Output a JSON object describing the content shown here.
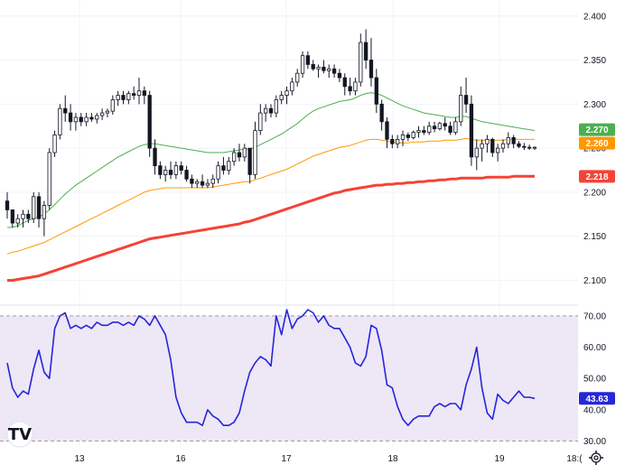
{
  "chart_data": [
    {
      "type": "candlestick",
      "title": "",
      "ylim": [
        2.08,
        2.41
      ],
      "y_ticks": [
        "2.400",
        "2.350",
        "2.300",
        "2.250",
        "2.200",
        "2.150",
        "2.100"
      ],
      "y_tick_values": [
        2.4,
        2.35,
        2.3,
        2.25,
        2.2,
        2.15,
        2.1
      ],
      "x_ticks": [
        "13",
        "16",
        "17",
        "18",
        "19",
        "18:("
      ],
      "candles": [
        [
          2.19,
          2.2,
          2.17,
          2.18
        ],
        [
          2.18,
          2.18,
          2.16,
          2.165
        ],
        [
          2.165,
          2.175,
          2.16,
          2.17
        ],
        [
          2.17,
          2.18,
          2.16,
          2.175
        ],
        [
          2.175,
          2.18,
          2.165,
          2.17
        ],
        [
          2.17,
          2.2,
          2.165,
          2.195
        ],
        [
          2.195,
          2.2,
          2.16,
          2.17
        ],
        [
          2.17,
          2.19,
          2.15,
          2.185
        ],
        [
          2.185,
          2.25,
          2.18,
          2.245
        ],
        [
          2.245,
          2.27,
          2.24,
          2.265
        ],
        [
          2.265,
          2.3,
          2.26,
          2.295
        ],
        [
          2.295,
          2.31,
          2.28,
          2.29
        ],
        [
          2.29,
          2.3,
          2.27,
          2.28
        ],
        [
          2.28,
          2.29,
          2.27,
          2.285
        ],
        [
          2.285,
          2.29,
          2.275,
          2.28
        ],
        [
          2.28,
          2.29,
          2.275,
          2.285
        ],
        [
          2.285,
          2.29,
          2.28,
          2.283
        ],
        [
          2.283,
          2.29,
          2.278,
          2.287
        ],
        [
          2.287,
          2.295,
          2.282,
          2.29
        ],
        [
          2.29,
          2.295,
          2.285,
          2.292
        ],
        [
          2.292,
          2.31,
          2.288,
          2.305
        ],
        [
          2.305,
          2.315,
          2.298,
          2.31
        ],
        [
          2.31,
          2.315,
          2.3,
          2.305
        ],
        [
          2.305,
          2.315,
          2.3,
          2.312
        ],
        [
          2.312,
          2.32,
          2.305,
          2.31
        ],
        [
          2.31,
          2.33,
          2.3,
          2.315
        ],
        [
          2.315,
          2.32,
          2.3,
          2.31
        ],
        [
          2.31,
          2.315,
          2.24,
          2.25
        ],
        [
          2.25,
          2.26,
          2.22,
          2.23
        ],
        [
          2.23,
          2.235,
          2.215,
          2.22
        ],
        [
          2.22,
          2.23,
          2.212,
          2.225
        ],
        [
          2.225,
          2.235,
          2.215,
          2.22
        ],
        [
          2.22,
          2.235,
          2.215,
          2.23
        ],
        [
          2.23,
          2.235,
          2.22,
          2.225
        ],
        [
          2.225,
          2.23,
          2.212,
          2.215
        ],
        [
          2.215,
          2.22,
          2.205,
          2.21
        ],
        [
          2.21,
          2.215,
          2.205,
          2.212
        ],
        [
          2.212,
          2.22,
          2.205,
          2.208
        ],
        [
          2.208,
          2.215,
          2.205,
          2.21
        ],
        [
          2.21,
          2.22,
          2.205,
          2.215
        ],
        [
          2.215,
          2.235,
          2.21,
          2.23
        ],
        [
          2.23,
          2.24,
          2.22,
          2.225
        ],
        [
          2.225,
          2.24,
          2.22,
          2.235
        ],
        [
          2.235,
          2.25,
          2.23,
          2.245
        ],
        [
          2.245,
          2.255,
          2.235,
          2.24
        ],
        [
          2.24,
          2.255,
          2.235,
          2.25
        ],
        [
          2.25,
          2.25,
          2.21,
          2.22
        ],
        [
          2.22,
          2.28,
          2.215,
          2.27
        ],
        [
          2.27,
          2.3,
          2.265,
          2.29
        ],
        [
          2.29,
          2.3,
          2.28,
          2.295
        ],
        [
          2.295,
          2.3,
          2.285,
          2.29
        ],
        [
          2.29,
          2.31,
          2.285,
          2.305
        ],
        [
          2.305,
          2.315,
          2.3,
          2.31
        ],
        [
          2.31,
          2.32,
          2.3,
          2.315
        ],
        [
          2.315,
          2.33,
          2.31,
          2.325
        ],
        [
          2.325,
          2.34,
          2.32,
          2.335
        ],
        [
          2.335,
          2.36,
          2.33,
          2.355
        ],
        [
          2.355,
          2.36,
          2.34,
          2.345
        ],
        [
          2.345,
          2.35,
          2.338,
          2.34
        ],
        [
          2.34,
          2.345,
          2.33,
          2.342
        ],
        [
          2.342,
          2.35,
          2.335,
          2.338
        ],
        [
          2.338,
          2.345,
          2.33,
          2.34
        ],
        [
          2.34,
          2.345,
          2.33,
          2.335
        ],
        [
          2.335,
          2.34,
          2.325,
          2.33
        ],
        [
          2.33,
          2.335,
          2.31,
          2.32
        ],
        [
          2.32,
          2.33,
          2.31,
          2.315
        ],
        [
          2.315,
          2.33,
          2.31,
          2.325
        ],
        [
          2.325,
          2.38,
          2.32,
          2.37
        ],
        [
          2.37,
          2.385,
          2.34,
          2.35
        ],
        [
          2.35,
          2.375,
          2.32,
          2.33
        ],
        [
          2.33,
          2.34,
          2.29,
          2.3
        ],
        [
          2.3,
          2.305,
          2.27,
          2.28
        ],
        [
          2.28,
          2.285,
          2.25,
          2.26
        ],
        [
          2.26,
          2.265,
          2.25,
          2.255
        ],
        [
          2.255,
          2.265,
          2.25,
          2.26
        ],
        [
          2.26,
          2.27,
          2.252,
          2.265
        ],
        [
          2.265,
          2.268,
          2.258,
          2.262
        ],
        [
          2.262,
          2.27,
          2.26,
          2.268
        ],
        [
          2.268,
          2.275,
          2.262,
          2.27
        ],
        [
          2.27,
          2.275,
          2.265,
          2.268
        ],
        [
          2.268,
          2.28,
          2.265,
          2.275
        ],
        [
          2.275,
          2.28,
          2.268,
          2.272
        ],
        [
          2.272,
          2.28,
          2.27,
          2.278
        ],
        [
          2.278,
          2.285,
          2.27,
          2.275
        ],
        [
          2.275,
          2.28,
          2.265,
          2.268
        ],
        [
          2.268,
          2.285,
          2.265,
          2.28
        ],
        [
          2.28,
          2.32,
          2.275,
          2.31
        ],
        [
          2.31,
          2.33,
          2.29,
          2.3
        ],
        [
          2.3,
          2.31,
          2.23,
          2.24
        ],
        [
          2.24,
          2.26,
          2.225,
          2.25
        ],
        [
          2.25,
          2.26,
          2.235,
          2.255
        ],
        [
          2.255,
          2.265,
          2.245,
          2.26
        ],
        [
          2.26,
          2.262,
          2.24,
          2.245
        ],
        [
          2.245,
          2.255,
          2.235,
          2.25
        ],
        [
          2.25,
          2.26,
          2.245,
          2.255
        ],
        [
          2.255,
          2.268,
          2.25,
          2.262
        ],
        [
          2.262,
          2.265,
          2.25,
          2.255
        ],
        [
          2.255,
          2.258,
          2.25,
          2.252
        ],
        [
          2.252,
          2.256,
          2.248,
          2.251
        ],
        [
          2.251,
          2.254,
          2.248,
          2.25
        ],
        [
          2.25,
          2.252,
          2.248,
          2.251
        ]
      ],
      "series": [
        {
          "name": "",
          "color": "#4caf50",
          "current_value": "2.270",
          "values": [
            2.16,
            2.16,
            2.162,
            2.165,
            2.168,
            2.17,
            2.172,
            2.175,
            2.18,
            2.186,
            2.192,
            2.198,
            2.203,
            2.208,
            2.212,
            2.216,
            2.22,
            2.224,
            2.228,
            2.232,
            2.236,
            2.24,
            2.243,
            2.246,
            2.249,
            2.252,
            2.254,
            2.255,
            2.255,
            2.254,
            2.253,
            2.252,
            2.251,
            2.25,
            2.249,
            2.248,
            2.247,
            2.246,
            2.245,
            2.245,
            2.245,
            2.245,
            2.246,
            2.247,
            2.248,
            2.249,
            2.249,
            2.251,
            2.254,
            2.257,
            2.26,
            2.263,
            2.266,
            2.27,
            2.274,
            2.278,
            2.283,
            2.288,
            2.292,
            2.295,
            2.297,
            2.299,
            2.301,
            2.303,
            2.304,
            2.305,
            2.307,
            2.31,
            2.312,
            2.313,
            2.312,
            2.31,
            2.307,
            2.304,
            2.301,
            2.298,
            2.296,
            2.294,
            2.292,
            2.29,
            2.289,
            2.288,
            2.287,
            2.286,
            2.285,
            2.285,
            2.286,
            2.286,
            2.284,
            2.282,
            2.28,
            2.279,
            2.278,
            2.277,
            2.276,
            2.275,
            2.274,
            2.273,
            2.272,
            2.271,
            2.27
          ]
        },
        {
          "name": "",
          "color": "#ff9800",
          "current_value": "2.260",
          "values": [
            2.13,
            2.132,
            2.133,
            2.135,
            2.137,
            2.139,
            2.141,
            2.143,
            2.146,
            2.149,
            2.152,
            2.155,
            2.158,
            2.161,
            2.164,
            2.167,
            2.17,
            2.173,
            2.176,
            2.179,
            2.182,
            2.185,
            2.188,
            2.191,
            2.194,
            2.197,
            2.2,
            2.202,
            2.203,
            2.204,
            2.205,
            2.205,
            2.205,
            2.205,
            2.205,
            2.205,
            2.205,
            2.205,
            2.205,
            2.206,
            2.207,
            2.208,
            2.209,
            2.21,
            2.211,
            2.212,
            2.212,
            2.214,
            2.216,
            2.218,
            2.22,
            2.222,
            2.224,
            2.226,
            2.229,
            2.232,
            2.235,
            2.238,
            2.241,
            2.243,
            2.245,
            2.247,
            2.249,
            2.251,
            2.252,
            2.253,
            2.255,
            2.257,
            2.259,
            2.26,
            2.26,
            2.259,
            2.258,
            2.257,
            2.256,
            2.256,
            2.256,
            2.257,
            2.257,
            2.257,
            2.258,
            2.258,
            2.258,
            2.259,
            2.259,
            2.259,
            2.26,
            2.261,
            2.26,
            2.259,
            2.259,
            2.259,
            2.259,
            2.259,
            2.259,
            2.26,
            2.26,
            2.26,
            2.26,
            2.26,
            2.26
          ]
        },
        {
          "name": "",
          "color": "#f44336",
          "current_value": "2.218",
          "values": [
            2.1,
            2.1,
            2.101,
            2.102,
            2.103,
            2.104,
            2.105,
            2.107,
            2.109,
            2.111,
            2.113,
            2.115,
            2.117,
            2.119,
            2.121,
            2.123,
            2.125,
            2.127,
            2.129,
            2.131,
            2.133,
            2.135,
            2.137,
            2.139,
            2.141,
            2.143,
            2.145,
            2.147,
            2.148,
            2.149,
            2.15,
            2.151,
            2.152,
            2.153,
            2.154,
            2.155,
            2.156,
            2.157,
            2.158,
            2.159,
            2.16,
            2.161,
            2.162,
            2.163,
            2.164,
            2.166,
            2.167,
            2.169,
            2.171,
            2.173,
            2.175,
            2.177,
            2.179,
            2.181,
            2.183,
            2.185,
            2.187,
            2.189,
            2.191,
            2.193,
            2.195,
            2.197,
            2.199,
            2.2,
            2.202,
            2.203,
            2.204,
            2.205,
            2.206,
            2.207,
            2.208,
            2.208,
            2.209,
            2.209,
            2.21,
            2.21,
            2.211,
            2.211,
            2.212,
            2.212,
            2.213,
            2.213,
            2.214,
            2.214,
            2.215,
            2.215,
            2.216,
            2.216,
            2.216,
            2.216,
            2.216,
            2.217,
            2.217,
            2.217,
            2.217,
            2.217,
            2.218,
            2.218,
            2.218,
            2.218,
            2.218
          ]
        }
      ]
    },
    {
      "type": "line",
      "title": "",
      "ylim": [
        29,
        72
      ],
      "y_ticks": [
        "70.00",
        "60.00",
        "50.00",
        "40.00",
        "30.00"
      ],
      "y_tick_values": [
        70,
        60,
        50,
        40,
        30
      ],
      "band": [
        30,
        70
      ],
      "series": [
        {
          "name": "",
          "color": "#2626d9",
          "current_value": "43.63",
          "values": [
            55,
            47,
            44,
            46,
            45,
            53,
            59,
            52,
            50,
            66,
            70,
            71,
            66,
            67,
            66,
            67,
            66,
            68,
            67,
            67,
            68,
            68,
            67,
            68,
            67,
            70,
            69,
            67,
            70,
            67,
            64,
            56,
            44,
            39,
            36,
            36,
            36,
            35,
            40,
            38,
            37,
            35,
            35,
            36,
            39,
            46,
            52,
            55,
            57,
            56,
            54,
            70,
            64,
            72,
            66,
            69,
            70,
            72,
            71,
            68,
            70,
            67,
            66,
            66,
            63,
            60,
            55,
            54,
            57,
            67,
            66,
            59,
            48,
            47,
            41,
            37,
            35,
            37,
            38,
            38,
            38,
            41,
            42,
            41,
            42,
            42,
            40,
            48,
            53,
            60,
            47,
            39,
            37,
            45,
            43,
            42,
            44,
            46,
            44,
            44,
            43.63
          ]
        }
      ]
    }
  ]
}
